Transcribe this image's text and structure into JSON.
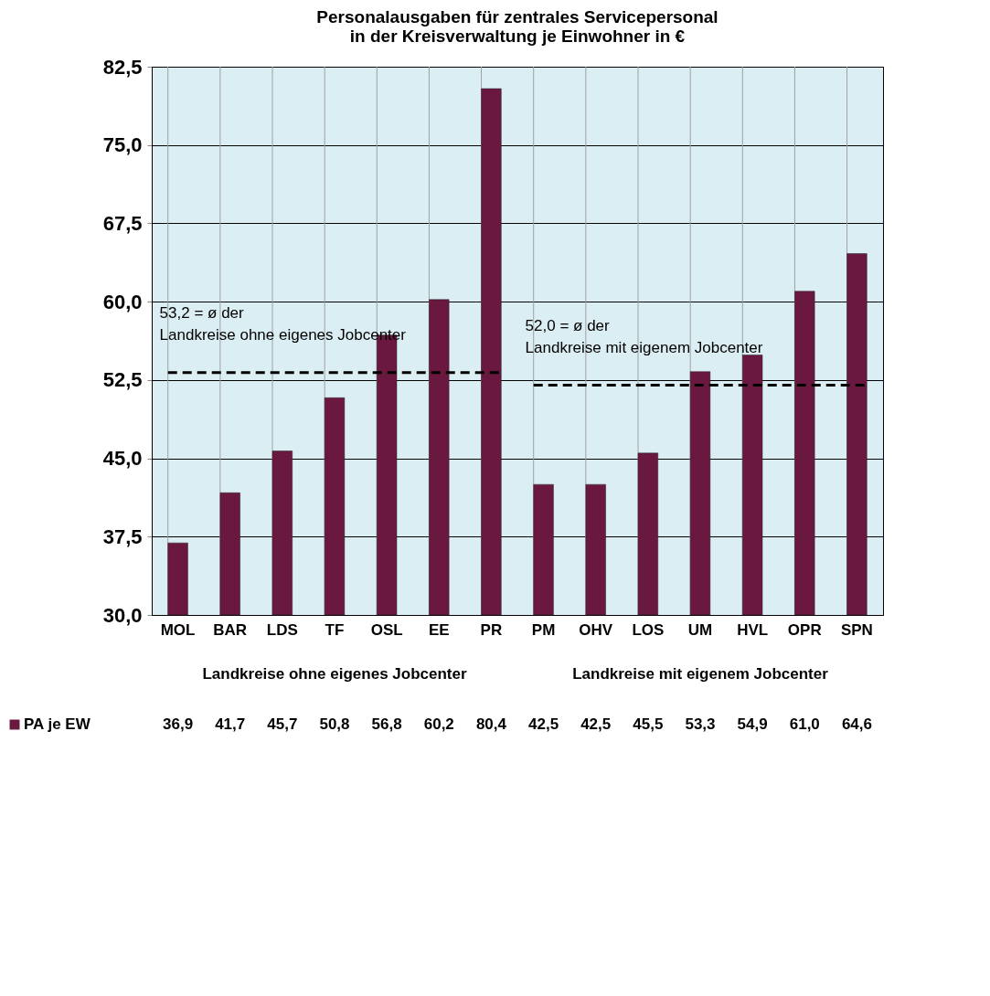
{
  "chart_data": {
    "type": "bar",
    "title": [
      "Personalausgaben für zentrales Servicepersonal",
      "in der Kreisverwaltung je Einwohner in €"
    ],
    "categories": [
      "MOL",
      "BAR",
      "LDS",
      "TF",
      "OSL",
      "EE",
      "PR",
      "PM",
      "OHV",
      "LOS",
      "UM",
      "HVL",
      "OPR",
      "SPN"
    ],
    "series": [
      {
        "name": "PA je EW",
        "color": "#6a1840",
        "values": [
          36.9,
          41.7,
          45.7,
          50.8,
          56.8,
          60.2,
          80.4,
          42.5,
          42.5,
          45.5,
          53.3,
          54.9,
          61.0,
          64.6
        ]
      }
    ],
    "ylim": [
      30,
      82.5
    ],
    "yticks": [
      {
        "value": 30,
        "label": "30,0"
      },
      {
        "value": 37.5,
        "label": "37,5"
      },
      {
        "value": 45,
        "label": "45,0"
      },
      {
        "value": 52.5,
        "label": "52,5"
      },
      {
        "value": 60,
        "label": "60,0"
      },
      {
        "value": 67.5,
        "label": "67,5"
      },
      {
        "value": 75,
        "label": "75,0"
      },
      {
        "value": 82.5,
        "label": "82,5"
      }
    ],
    "grid": true,
    "legend": "bottom left",
    "value_labels": [
      "36,9",
      "41,7",
      "45,7",
      "50,8",
      "56,8",
      "60,2",
      "80,4",
      "42,5",
      "42,5",
      "45,5",
      "53,3",
      "54,9",
      "61,0",
      "64,6"
    ],
    "ref_lines": [
      {
        "axis": "y",
        "value": 53.2,
        "label": "53,2 = ø der Landkreise ohne eigenes Jobcenter",
        "line_style": "dashed",
        "color": "#000000"
      },
      {
        "axis": "y",
        "value": 52.0,
        "label": "52,0 = ø der Landkreise mit eigenem Jobcenter",
        "line_style": "dashed",
        "color": "#000000"
      }
    ],
    "annotations": [
      "Landkreise ohne eigenes Jobcenter",
      "Landkreise mit eigenem Jobcenter"
    ]
  }
}
